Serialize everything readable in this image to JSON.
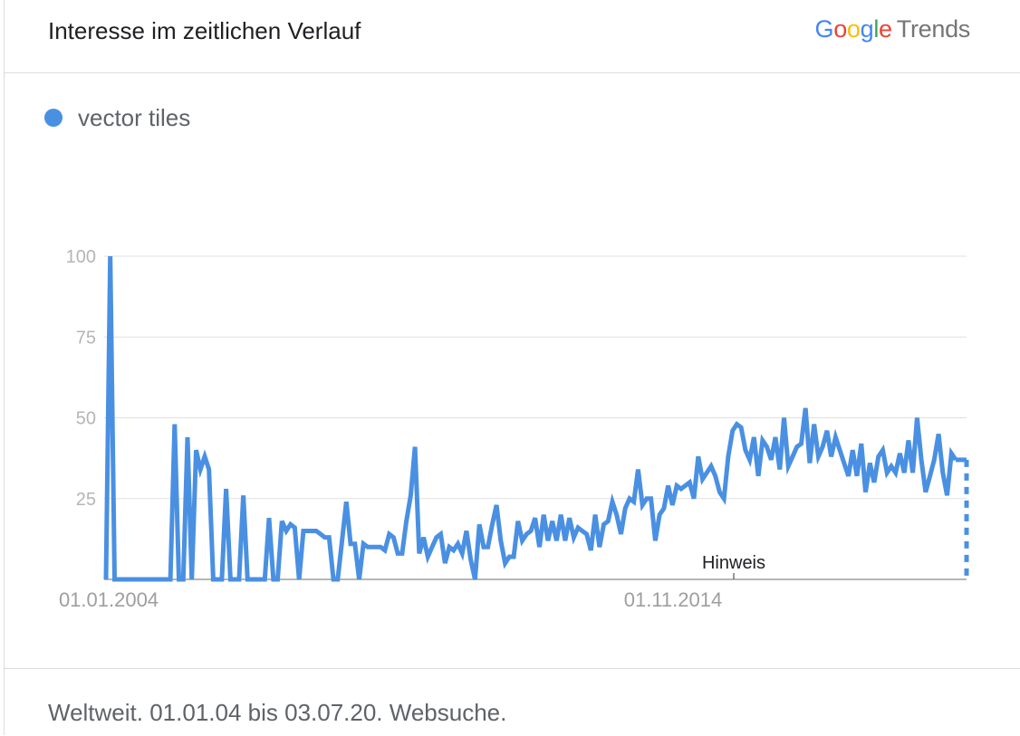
{
  "header": {
    "title": "Interesse im zeitlichen Verlauf",
    "brand_letters": [
      "G",
      "o",
      "o",
      "g",
      "l",
      "e"
    ],
    "brand_colors": [
      "#4285F4",
      "#EA4335",
      "#FBBC05",
      "#4285F4",
      "#34A853",
      "#EA4335"
    ],
    "brand_suffix": "Trends"
  },
  "legend": {
    "label": "vector tiles",
    "color": "#4a90e2"
  },
  "chart_data": {
    "type": "line",
    "series": [
      {
        "name": "vector tiles",
        "color": "#4a90e2",
        "x_start": 2004.0,
        "x_end": 2020.5,
        "values": [
          0,
          100,
          0,
          0,
          0,
          0,
          0,
          0,
          0,
          0,
          0,
          0,
          0,
          0,
          0,
          0,
          48,
          0,
          0,
          44,
          0,
          40,
          34,
          38,
          34,
          0,
          0,
          0,
          28,
          0,
          0,
          0,
          26,
          0,
          0,
          0,
          0,
          0,
          19,
          0,
          0,
          18,
          15,
          17,
          16,
          0,
          15,
          15,
          15,
          15,
          14,
          13,
          13,
          0,
          0,
          12,
          24,
          11,
          11,
          0,
          11,
          10,
          10,
          10,
          10,
          9,
          14,
          13,
          8,
          8,
          18,
          26,
          41,
          8,
          13,
          7,
          10,
          13,
          14,
          5,
          10,
          9,
          11,
          8,
          15,
          6,
          0,
          17,
          10,
          10,
          17,
          23,
          12,
          5,
          7,
          7,
          18,
          12,
          14,
          15,
          19,
          10,
          20,
          12,
          18,
          12,
          20,
          12,
          19,
          13,
          16,
          15,
          14,
          9,
          20,
          10,
          17,
          18,
          24,
          20,
          14,
          22,
          25,
          24,
          34,
          23,
          25,
          25,
          12,
          20,
          22,
          29,
          23,
          29,
          28,
          29,
          30,
          25,
          38,
          31,
          33,
          35,
          32,
          27,
          25,
          38,
          46,
          48,
          47,
          40,
          37,
          44,
          32,
          43,
          41,
          37,
          44,
          34,
          50,
          35,
          38,
          41,
          42,
          53,
          36,
          48,
          38,
          41,
          46,
          38,
          44,
          40,
          36,
          32,
          40,
          32,
          42,
          27,
          36,
          30,
          38,
          40,
          33,
          35,
          33,
          39,
          33,
          43,
          33,
          50,
          37,
          27,
          32,
          37,
          45,
          33,
          26,
          39,
          37
        ]
      }
    ],
    "dashed_tail": {
      "from": 37,
      "to": 0
    },
    "xlabels": [
      "01.01.2004",
      "01.11.2014"
    ],
    "ylabels": [
      "25",
      "50",
      "75",
      "100"
    ],
    "ylim": [
      0,
      100
    ],
    "note_marker": {
      "label": "Hinweis",
      "x": 2014.0
    }
  },
  "footer": {
    "text": "Weltweit. 01.01.04 bis 03.07.20. Websuche."
  }
}
